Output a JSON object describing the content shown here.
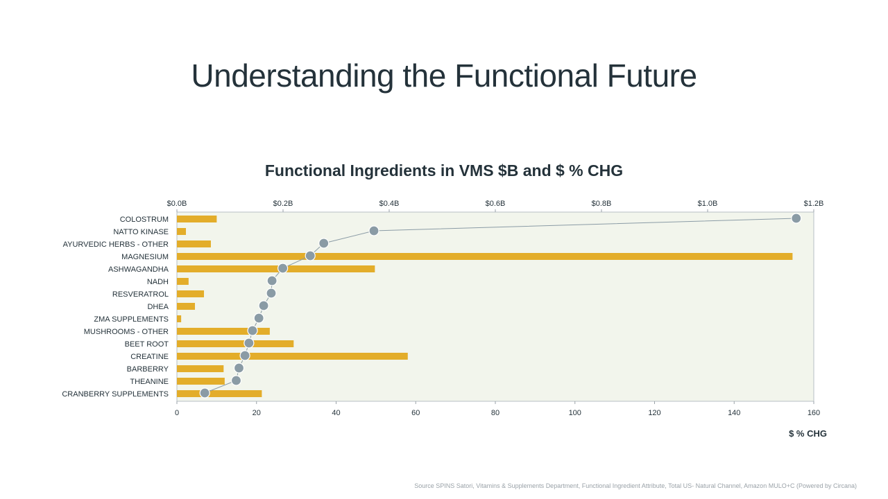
{
  "page": {
    "title": "Understanding the Functional Future",
    "source": "Source SPINS Satori, Vitamins & Supplements Department, Functional Ingredient Attribute, Total US- Natural Channel, Amazon MULO+C (Powered by Circana)"
  },
  "colors": {
    "bar": "#e3ad2a",
    "dot": "#8a9ba5",
    "line": "#8a9ba5",
    "plot_bg": "#f2f5ec",
    "text": "#24323a"
  },
  "chart_data": {
    "type": "bar",
    "title": "Functional Ingredients in VMS $B and $ % CHG",
    "xlabel": "$ % CHG",
    "categories": [
      "COLOSTRUM",
      "NATTO KINASE",
      "AYURVEDIC HERBS - OTHER",
      "MAGNESIUM",
      "ASHWAGANDHA",
      "NADH",
      "RESVERATROL",
      "DHEA",
      "ZMA SUPPLEMENTS",
      "MUSHROOMS - OTHER",
      "BEET ROOT",
      "CREATINE",
      "BARBERRY",
      "THEANINE",
      "CRANBERRY SUPPLEMENTS"
    ],
    "series": [
      {
        "name": "$B",
        "type": "bar",
        "axis": "top",
        "values": [
          0.075,
          0.017,
          0.064,
          1.16,
          0.373,
          0.022,
          0.051,
          0.034,
          0.008,
          0.175,
          0.22,
          0.435,
          0.088,
          0.09,
          0.16
        ]
      },
      {
        "name": "$ % CHG",
        "type": "line",
        "axis": "bottom",
        "values": [
          155.6,
          49.5,
          36.9,
          33.5,
          26.6,
          23.9,
          23.7,
          21.8,
          20.6,
          19.0,
          18.1,
          17.1,
          15.6,
          14.9,
          7.0
        ]
      }
    ],
    "top_axis": {
      "range": [
        0,
        1.2
      ],
      "ticks": [
        "$0.0B",
        "$0.2B",
        "$0.4B",
        "$0.6B",
        "$0.8B",
        "$1.0B",
        "$1.2B"
      ]
    },
    "bottom_axis": {
      "range": [
        0,
        160
      ],
      "ticks": [
        "0",
        "20",
        "40",
        "60",
        "80",
        "100",
        "120",
        "140",
        "160"
      ]
    },
    "grid": false,
    "legend": "none"
  }
}
